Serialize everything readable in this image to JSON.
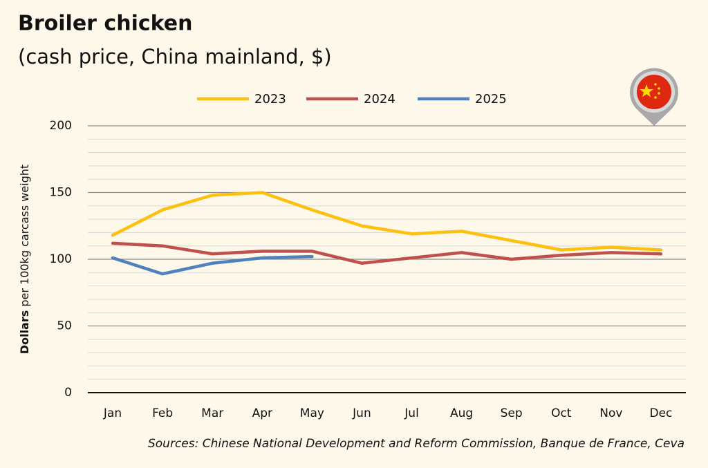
{
  "chart_data": {
    "type": "line",
    "title": "Broiler chicken",
    "subtitle": "(cash price, China mainland, $)",
    "ylabel_bold": "Dollars",
    "ylabel": "per 100kg carcass weight",
    "source": "Sources: Chinese National Development and Reform Commission, Banque de France, Ceva",
    "categories": [
      "Jan",
      "Feb",
      "Mar",
      "Apr",
      "May",
      "Jun",
      "Jul",
      "Aug",
      "Sep",
      "Oct",
      "Nov",
      "Dec"
    ],
    "series": [
      {
        "name": "2023",
        "color": "#fcc110",
        "values": [
          118,
          137,
          148,
          150,
          137,
          125,
          119,
          121,
          114,
          107,
          109,
          107
        ]
      },
      {
        "name": "2024",
        "color": "#c0504d",
        "values": [
          112,
          110,
          104,
          106,
          106,
          97,
          101,
          105,
          100,
          103,
          105,
          104
        ]
      },
      {
        "name": "2025",
        "color": "#4f81bd",
        "values": [
          101,
          89,
          97,
          101,
          102,
          null,
          null,
          null,
          null,
          null,
          null,
          null
        ]
      }
    ],
    "ylim": [
      0,
      200
    ],
    "yticks": [
      0,
      50,
      100,
      150,
      200
    ],
    "minor_yticks": [
      10,
      20,
      30,
      40,
      60,
      70,
      80,
      90,
      110,
      120,
      130,
      140,
      160,
      170,
      180,
      190
    ],
    "grid": true,
    "legend": "top"
  }
}
